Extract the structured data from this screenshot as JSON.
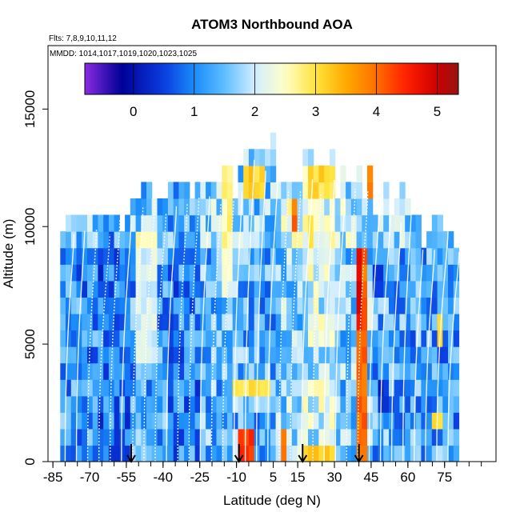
{
  "chart_data": {
    "type": "heatmap",
    "title": "ATOM3 Northbound AOA",
    "subtitle_flights": "Flts: 7,8,9,10,11,12",
    "subtitle_dates": "MMDD: 1014,1017,1019,1020,1023,1025",
    "xlabel": "Latitude (deg N)",
    "ylabel": "Altitude (m)",
    "xlim": [
      -87,
      96
    ],
    "ylim": [
      0,
      17700
    ],
    "x_ticks": [
      -85,
      -70,
      -55,
      -40,
      -25,
      -10,
      5,
      15,
      30,
      45,
      60,
      75
    ],
    "x_tick_labels": [
      "-85",
      "-70",
      "-55",
      "-40",
      "-25",
      "-10",
      "5",
      "15",
      "30",
      "45",
      "60",
      "75"
    ],
    "x_minor_step": 5,
    "y_ticks": [
      0,
      5000,
      10000,
      15000
    ],
    "y_tick_labels": [
      "0",
      "5000",
      "10000",
      "15000"
    ],
    "colorbar": {
      "min": -0.8,
      "max": 5.35,
      "ticks": [
        0,
        1,
        2,
        3,
        4,
        5
      ],
      "tick_labels": [
        "0",
        "1",
        "2",
        "3",
        "4",
        "5"
      ]
    },
    "arrows_latitude": [
      -53,
      -9,
      17,
      40
    ],
    "regions": [
      {
        "lat": [
          -82,
          -68
        ],
        "alt": [
          0,
          10500
        ],
        "value": 1.1
      },
      {
        "lat": [
          -68,
          -55
        ],
        "alt": [
          0,
          10800
        ],
        "value": 0.9
      },
      {
        "lat": [
          -55,
          -40
        ],
        "alt": [
          0,
          11900
        ],
        "value": 1.2
      },
      {
        "lat": [
          -40,
          -25
        ],
        "alt": [
          0,
          11900
        ],
        "value": 1.0
      },
      {
        "lat": [
          -25,
          -10
        ],
        "alt": [
          0,
          12200
        ],
        "value": 1.4
      },
      {
        "lat": [
          -10,
          5
        ],
        "alt": [
          0,
          13400
        ],
        "value": 1.3
      },
      {
        "lat": [
          5,
          15
        ],
        "alt": [
          0,
          12200
        ],
        "value": 1.7
      },
      {
        "lat": [
          15,
          30
        ],
        "alt": [
          0,
          12700
        ],
        "value": 2.0
      },
      {
        "lat": [
          30,
          45
        ],
        "alt": [
          0,
          12200
        ],
        "value": 1.6
      },
      {
        "lat": [
          45,
          60
        ],
        "alt": [
          0,
          11300
        ],
        "value": 1.3
      },
      {
        "lat": [
          60,
          80
        ],
        "alt": [
          0,
          10200
        ],
        "value": 1.2
      },
      {
        "lat": [
          -52,
          -44
        ],
        "alt": [
          4000,
          9500
        ],
        "value": 2.1
      },
      {
        "lat": [
          -18,
          -12
        ],
        "alt": [
          6500,
          12000
        ],
        "value": 2.3
      },
      {
        "lat": [
          -10,
          -4
        ],
        "alt": [
          0,
          800
        ],
        "value": 4.4
      },
      {
        "lat": [
          -12,
          2
        ],
        "alt": [
          2500,
          3500
        ],
        "value": 2.9
      },
      {
        "lat": [
          -8,
          0
        ],
        "alt": [
          11000,
          12200
        ],
        "value": 2.8
      },
      {
        "lat": [
          7,
          10
        ],
        "alt": [
          0,
          800
        ],
        "value": 3.8
      },
      {
        "lat": [
          15,
          30
        ],
        "alt": [
          0,
          700
        ],
        "value": 3.3
      },
      {
        "lat": [
          18,
          30
        ],
        "alt": [
          11200,
          12500
        ],
        "value": 2.7
      },
      {
        "lat": [
          38,
          42
        ],
        "alt": [
          0,
          9000
        ],
        "value": 4.0
      },
      {
        "lat": [
          39,
          41
        ],
        "alt": [
          5000,
          8800
        ],
        "value": 4.8
      },
      {
        "lat": [
          41,
          44
        ],
        "alt": [
          11000,
          12200
        ],
        "value": 3.6
      },
      {
        "lat": [
          46,
          51
        ],
        "alt": [
          1500,
          3500
        ],
        "value": 0.3
      },
      {
        "lat": [
          44,
          48
        ],
        "alt": [
          6500,
          8000
        ],
        "value": 0.6
      },
      {
        "lat": [
          70,
          74
        ],
        "alt": [
          4500,
          6000
        ],
        "value": 3.3
      },
      {
        "lat": [
          68,
          74
        ],
        "alt": [
          1000,
          2000
        ],
        "value": 2.9
      },
      {
        "lat": [
          12,
          14
        ],
        "alt": [
          9800,
          10600
        ],
        "value": 3.6
      }
    ]
  }
}
